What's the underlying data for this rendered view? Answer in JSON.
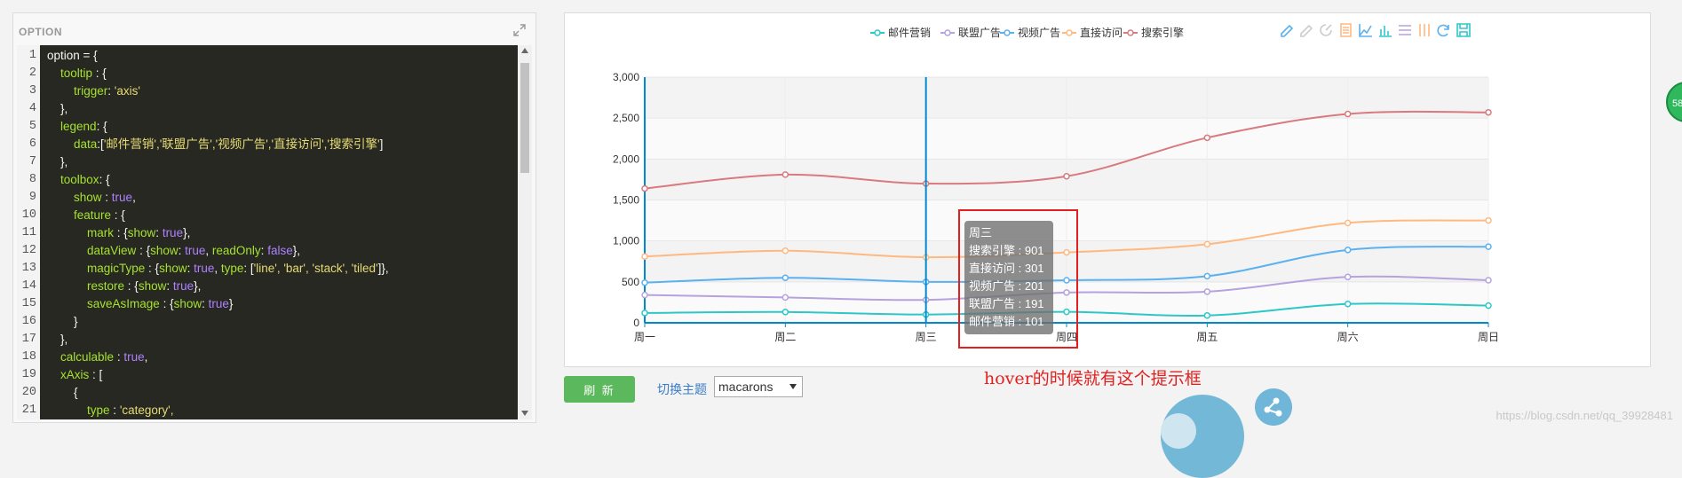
{
  "left_panel": {
    "title": "OPTION",
    "line_numbers": [
      "1",
      "2",
      "3",
      "4",
      "5",
      "6",
      "7",
      "8",
      "9",
      "10",
      "11",
      "12",
      "13",
      "14",
      "15",
      "16",
      "17",
      "18",
      "19",
      "20",
      "21"
    ],
    "code": [
      [
        [
          "t",
          "option = {"
        ]
      ],
      [
        [
          "t",
          "    "
        ],
        [
          "k",
          "tooltip"
        ],
        [
          "t",
          " : {"
        ]
      ],
      [
        [
          "t",
          "        "
        ],
        [
          "k",
          "trigger"
        ],
        [
          "t",
          ": "
        ],
        [
          "s",
          "'axis'"
        ]
      ],
      [
        [
          "t",
          "    },"
        ]
      ],
      [
        [
          "t",
          "    "
        ],
        [
          "k",
          "legend"
        ],
        [
          "t",
          ": {"
        ]
      ],
      [
        [
          "t",
          "        "
        ],
        [
          "k",
          "data"
        ],
        [
          "t",
          ":["
        ],
        [
          "s",
          "'邮件营销','联盟广告','视频广告','直接访问','搜索引擎'"
        ],
        [
          "t",
          "]"
        ]
      ],
      [
        [
          "t",
          "    },"
        ]
      ],
      [
        [
          "t",
          "    "
        ],
        [
          "k",
          "toolbox"
        ],
        [
          "t",
          ": {"
        ]
      ],
      [
        [
          "t",
          "        "
        ],
        [
          "k",
          "show"
        ],
        [
          "t",
          " : "
        ],
        [
          "b",
          "true"
        ],
        [
          "t",
          ","
        ]
      ],
      [
        [
          "t",
          "        "
        ],
        [
          "k",
          "feature"
        ],
        [
          "t",
          " : {"
        ]
      ],
      [
        [
          "t",
          "            "
        ],
        [
          "k",
          "mark"
        ],
        [
          "t",
          " : {"
        ],
        [
          "k",
          "show"
        ],
        [
          "t",
          ": "
        ],
        [
          "b",
          "true"
        ],
        [
          "t",
          "},"
        ]
      ],
      [
        [
          "t",
          "            "
        ],
        [
          "k",
          "dataView"
        ],
        [
          "t",
          " : {"
        ],
        [
          "k",
          "show"
        ],
        [
          "t",
          ": "
        ],
        [
          "b",
          "true"
        ],
        [
          "t",
          ", "
        ],
        [
          "k",
          "readOnly"
        ],
        [
          "t",
          ": "
        ],
        [
          "b",
          "false"
        ],
        [
          "t",
          "},"
        ]
      ],
      [
        [
          "t",
          "            "
        ],
        [
          "k",
          "magicType"
        ],
        [
          "t",
          " : {"
        ],
        [
          "k",
          "show"
        ],
        [
          "t",
          ": "
        ],
        [
          "b",
          "true"
        ],
        [
          "t",
          ", "
        ],
        [
          "k",
          "type"
        ],
        [
          "t",
          ": ["
        ],
        [
          "s",
          "'line', 'bar', 'stack', 'tiled'"
        ],
        [
          "t",
          "]},"
        ]
      ],
      [
        [
          "t",
          "            "
        ],
        [
          "k",
          "restore"
        ],
        [
          "t",
          " : {"
        ],
        [
          "k",
          "show"
        ],
        [
          "t",
          ": "
        ],
        [
          "b",
          "true"
        ],
        [
          "t",
          "},"
        ]
      ],
      [
        [
          "t",
          "            "
        ],
        [
          "k",
          "saveAsImage"
        ],
        [
          "t",
          " : {"
        ],
        [
          "k",
          "show"
        ],
        [
          "t",
          ": "
        ],
        [
          "b",
          "true"
        ],
        [
          "t",
          "}"
        ]
      ],
      [
        [
          "t",
          "        }"
        ]
      ],
      [
        [
          "t",
          "    },"
        ]
      ],
      [
        [
          "t",
          "    "
        ],
        [
          "k",
          "calculable"
        ],
        [
          "t",
          " : "
        ],
        [
          "b",
          "true"
        ],
        [
          "t",
          ","
        ]
      ],
      [
        [
          "t",
          "    "
        ],
        [
          "k",
          "xAxis"
        ],
        [
          "t",
          " : ["
        ]
      ],
      [
        [
          "t",
          "        {"
        ]
      ],
      [
        [
          "t",
          "            "
        ],
        [
          "k",
          "type"
        ],
        [
          "t",
          " : "
        ],
        [
          "s",
          "'category',"
        ]
      ]
    ]
  },
  "chart_data": {
    "type": "line",
    "categories": [
      "周一",
      "周二",
      "周三",
      "周四",
      "周五",
      "周六",
      "周日"
    ],
    "ylim": [
      0,
      3000
    ],
    "yticks": [
      "0",
      "500",
      "1,000",
      "1,500",
      "2,000",
      "2,500",
      "3,000"
    ],
    "grid": true,
    "legend_position": "top-center",
    "series": [
      {
        "name": "邮件营销",
        "color": "#2ec7c9",
        "values": [
          120,
          132,
          101,
          134,
          90,
          230,
          210
        ]
      },
      {
        "name": "联盟广告",
        "color": "#b6a2de",
        "values": [
          340,
          310,
          280,
          370,
          380,
          560,
          520
        ]
      },
      {
        "name": "视频广告",
        "color": "#5ab1ef",
        "values": [
          490,
          550,
          500,
          520,
          570,
          890,
          930
        ]
      },
      {
        "name": "直接访问",
        "color": "#ffb980",
        "values": [
          810,
          880,
          800,
          860,
          960,
          1220,
          1250
        ]
      },
      {
        "name": "搜索引擎",
        "color": "#d87a80",
        "values": [
          1640,
          1810,
          1700,
          1790,
          2260,
          2550,
          2570
        ]
      }
    ],
    "hover_category": "周三"
  },
  "tooltip": {
    "title": "周三",
    "rows": [
      "搜索引擎 : 901",
      "直接访问 : 301",
      "视频广告 : 201",
      "联盟广告 : 191",
      "邮件营销 : 101"
    ]
  },
  "toolbox_icons": [
    "mark-pen-icon",
    "mark-undo-icon",
    "mark-clear-icon",
    "data-view-icon",
    "line-chart-icon",
    "bar-chart-icon",
    "stack-icon",
    "tiled-icon",
    "restore-icon",
    "save-image-icon"
  ],
  "annotation": "hover的时候就有这个提示框",
  "controls": {
    "refresh_label": "刷 新",
    "theme_label": "切换主题",
    "theme_value": "macarons"
  },
  "side_badge": "58",
  "watermark": "https://blog.csdn.net/qq_39928481"
}
